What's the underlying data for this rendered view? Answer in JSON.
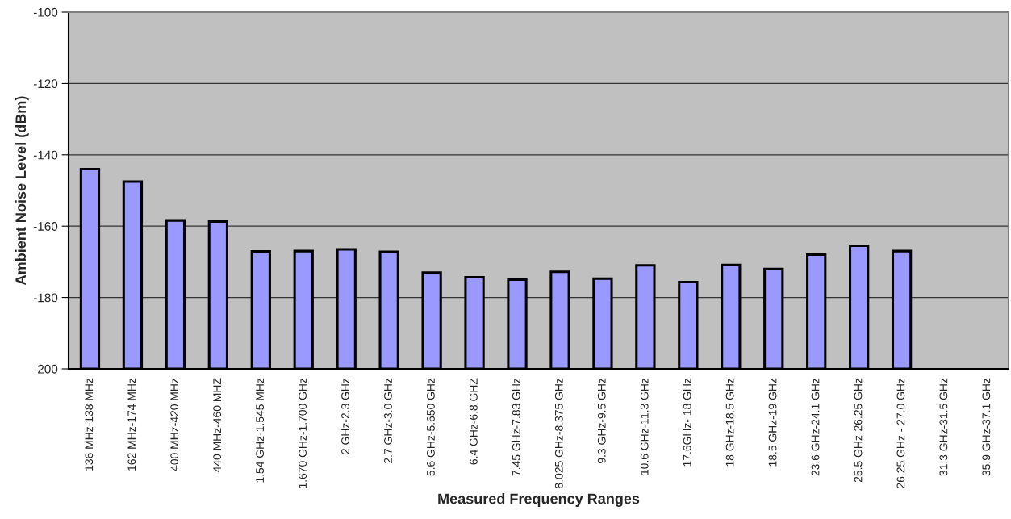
{
  "chart_data": {
    "type": "bar",
    "xlabel": "Measured Frequency Ranges",
    "ylabel": "Ambient Noise Level (dBm)",
    "categories": [
      "136 MHz-138 MHz",
      "162 MHz-174 MHz",
      "400 MHz-420 MHz",
      "440 MHz-460 MHZ",
      "1.54 GHz-1.545 MHz",
      "1.670 GHz-1.700 GHz",
      "2 GHz-2.3 GHz",
      "2.7 GHz-3.0 GHz",
      "5.6 GHz-5.650 GHz",
      "6.4 GHz-6.8 GHZ",
      "7.45 GHz-7.83 GHz",
      "8.025 GHz-8.375 GHz",
      "9.3 GHz-9.5 GHz",
      "10.6 GHz-11.3 GHz",
      "17.6GHz- 18 GHz",
      "18 GHz-18.5 GHz",
      "18.5 GHz-19 GHz",
      "23.6 GHz-24.1 GHz",
      "25.5 GHz-26.25 GHz",
      "26.25 GHz - 27.0 GHz",
      "31.3 GHz-31.5 GHz",
      "35.9 GHz-37.1 GHz"
    ],
    "values": [
      56,
      52.5,
      41.6,
      41.3,
      32.9,
      33,
      33.5,
      32.8,
      27,
      25.7,
      25,
      27.2,
      25.3,
      29,
      24.3,
      29.1,
      28,
      32,
      34.5,
      33,
      null,
      null
    ],
    "base": [
      -200,
      -200,
      -200,
      -200,
      -200,
      -200,
      -200,
      -200,
      -200,
      -200,
      -200,
      -200,
      -200,
      -200,
      -200,
      -200,
      -200,
      -200,
      -200,
      -200,
      null,
      null
    ],
    "color": "#9999ff",
    "ylim": [
      -200,
      -100
    ],
    "yticks": [
      -200,
      -180,
      -160,
      -140,
      -120,
      -100
    ],
    "grid": "y"
  }
}
